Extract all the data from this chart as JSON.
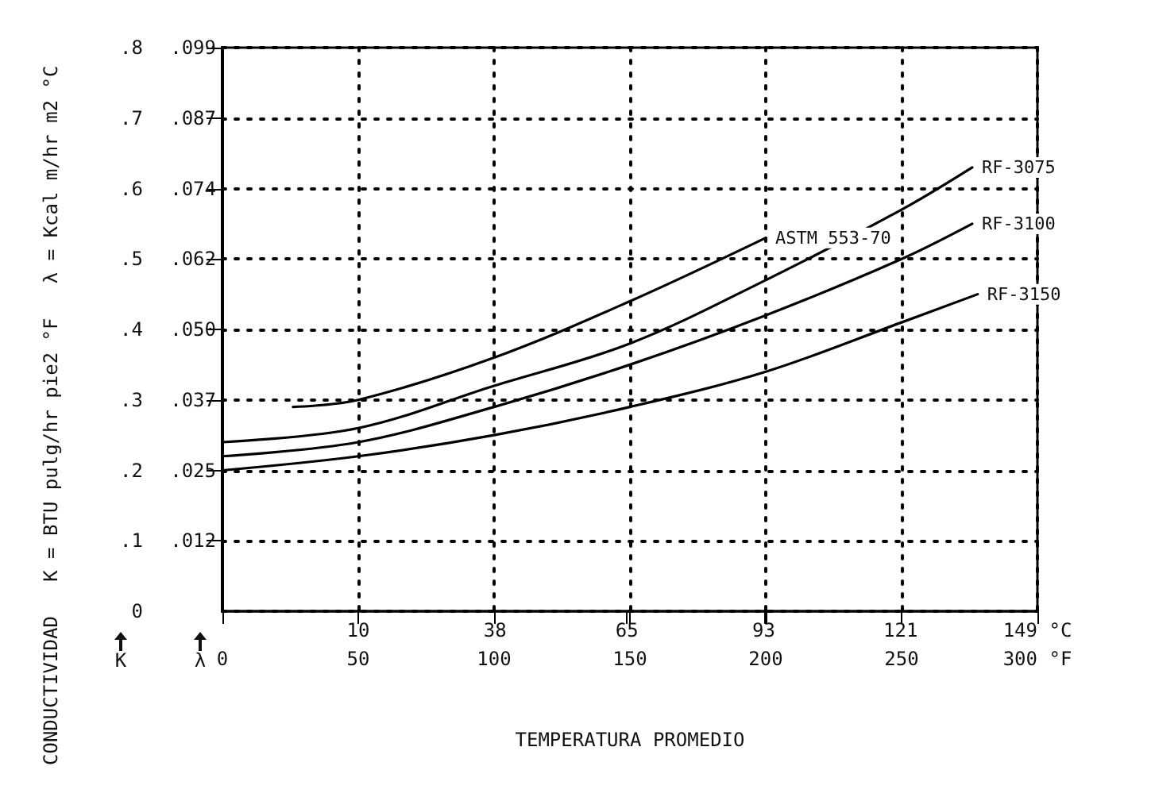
{
  "chart_data": {
    "type": "line",
    "xlabel": "TEMPERATURA PROMEDIO",
    "ylabel": "CONDUCTIVIDAD   K = BTU pulg/hr pie2 °F   λ = Kcal m/hr m2 °C",
    "annotations": [
      "K",
      "λ"
    ],
    "xlim": [
      0,
      300
    ],
    "xticks": [
      0,
      50,
      100,
      150,
      200,
      250,
      {
        "value": 300,
        "label": "300 °F"
      }
    ],
    "x2lim": [
      -17.8,
      149
    ],
    "x2ticks": [
      10,
      38,
      65,
      93,
      121,
      {
        "value": 149,
        "label": "149 °C"
      }
    ],
    "ylim": [
      0,
      0.8
    ],
    "yticks": [
      0,
      {
        "value": 0.1,
        "label": ".1"
      },
      {
        "value": 0.2,
        "label": ".2"
      },
      {
        "value": 0.3,
        "label": ".3"
      },
      {
        "value": 0.4,
        "label": ".4"
      },
      {
        "value": 0.5,
        "label": ".5"
      },
      {
        "value": 0.6,
        "label": ".6"
      },
      {
        "value": 0.7,
        "label": ".7"
      },
      {
        "value": 0.8,
        "label": ".8"
      }
    ],
    "y2lim": [
      0,
      0.0992
    ],
    "y2ticks": [
      {
        "value": 0.0124,
        "label": ".012"
      },
      {
        "value": 0.0248,
        "label": ".025"
      },
      {
        "value": 0.0372,
        "label": ".037"
      },
      {
        "value": 0.0496,
        "label": ".050"
      },
      {
        "value": 0.062,
        "label": ".062"
      },
      {
        "value": 0.0744,
        "label": ".074"
      },
      {
        "value": 0.0868,
        "label": ".087"
      },
      {
        "value": 0.0992,
        "label": ".099"
      }
    ],
    "grid": true,
    "legend": false,
    "marker": "none",
    "line_style": "solid",
    "series": [
      {
        "name": "ASTM 553-70",
        "color": "#000000",
        "x": [
          26,
          50,
          100,
          150,
          200
        ],
        "values": [
          0.29,
          0.3,
          0.36,
          0.44,
          0.53
        ]
      },
      {
        "name": "RF-3075",
        "color": "#000000",
        "x": [
          0,
          50,
          100,
          150,
          200,
          250,
          276
        ],
        "values": [
          0.24,
          0.26,
          0.32,
          0.38,
          0.47,
          0.57,
          0.63
        ]
      },
      {
        "name": "RF-3100",
        "color": "#000000",
        "x": [
          0,
          50,
          100,
          150,
          200,
          250,
          276
        ],
        "values": [
          0.22,
          0.24,
          0.29,
          0.35,
          0.42,
          0.5,
          0.55
        ]
      },
      {
        "name": "RF-3150",
        "color": "#000000",
        "x": [
          0,
          50,
          100,
          150,
          200,
          250,
          278
        ],
        "values": [
          0.2,
          0.22,
          0.25,
          0.29,
          0.34,
          0.41,
          0.45
        ]
      }
    ]
  }
}
